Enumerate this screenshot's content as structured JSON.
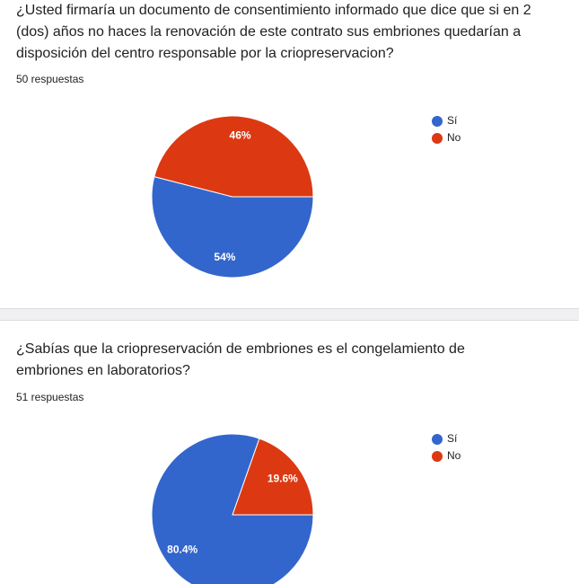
{
  "chart_data": [
    {
      "type": "pie",
      "title": "¿Usted firmaría un documento de consentimiento informado que dice que si en 2 (dos) años no haces la renovación de este contrato sus embriones quedarían a disposición del centro responsable por la criopreservacion?",
      "subtitle": "50 respuestas",
      "categories": [
        "Sí",
        "No"
      ],
      "values": [
        54,
        46
      ],
      "value_labels": [
        "54%",
        "46%"
      ],
      "colors": [
        "#3366cc",
        "#dc3912"
      ]
    },
    {
      "type": "pie",
      "title": "¿Sabías que la criopreservación de embriones es el congelamiento de embriones en laboratorios?",
      "subtitle": "51 respuestas",
      "categories": [
        "Sí",
        "No"
      ],
      "values": [
        80.4,
        19.6
      ],
      "value_labels": [
        "80.4%",
        "19.6%"
      ],
      "colors": [
        "#3366cc",
        "#dc3912"
      ]
    }
  ]
}
